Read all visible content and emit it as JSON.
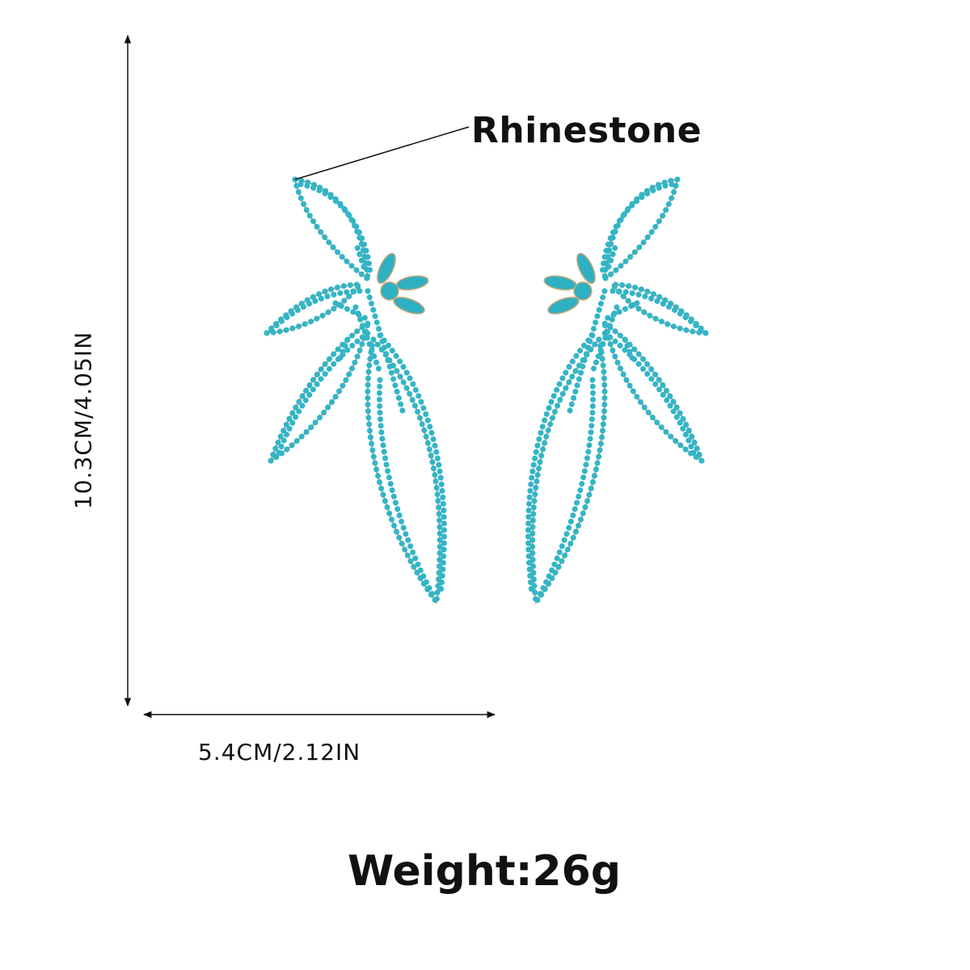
{
  "annotations": {
    "material_label": "Rhinestone",
    "height_label": "10.3CM/4.05IN",
    "width_label": "5.4CM/2.12IN",
    "weight_label": "Weight:26g"
  },
  "colors": {
    "rhinestone": "#33b5c6",
    "setting": "#c9a878",
    "text": "#111111"
  }
}
